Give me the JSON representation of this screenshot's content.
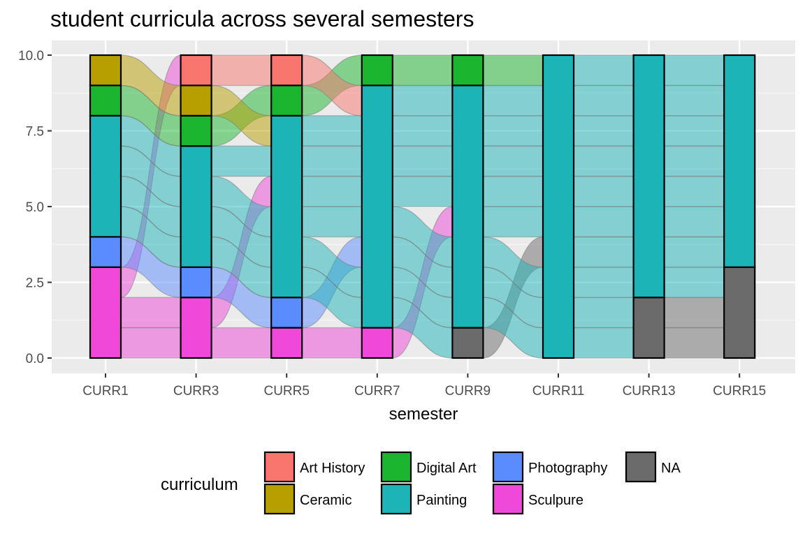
{
  "chart_data": {
    "type": "alluvial",
    "title": "student curricula across several semesters",
    "xlabel": "semester",
    "ylabel": "",
    "ylim": [
      0,
      10
    ],
    "y_ticks": [
      "0.0",
      "2.5",
      "5.0",
      "7.5",
      "10.0"
    ],
    "y_tick_values": [
      0,
      2.5,
      5,
      7.5,
      10
    ],
    "categories": [
      "CURR1",
      "CURR3",
      "CURR5",
      "CURR7",
      "CURR9",
      "CURR11",
      "CURR13",
      "CURR15"
    ],
    "legend": {
      "title": "curriculum",
      "position": "bottom",
      "items": [
        {
          "name": "Art History",
          "color": "#F8766D"
        },
        {
          "name": "Ceramic",
          "color": "#B79F00"
        },
        {
          "name": "Digital Art",
          "color": "#1BB530"
        },
        {
          "name": "Painting",
          "color": "#1DB4B8"
        },
        {
          "name": "Photography",
          "color": "#5B8CFF"
        },
        {
          "name": "Sculpure",
          "color": "#F048D8"
        },
        {
          "name": "NA",
          "color": "#6B6B6B"
        }
      ]
    },
    "stacks": [
      {
        "semester": "CURR1",
        "segments": [
          {
            "curriculum": "Sculpure",
            "value": 3
          },
          {
            "curriculum": "Photography",
            "value": 1
          },
          {
            "curriculum": "Painting",
            "value": 4
          },
          {
            "curriculum": "Digital Art",
            "value": 1
          },
          {
            "curriculum": "Ceramic",
            "value": 1
          }
        ]
      },
      {
        "semester": "CURR3",
        "segments": [
          {
            "curriculum": "Sculpure",
            "value": 2
          },
          {
            "curriculum": "Photography",
            "value": 1
          },
          {
            "curriculum": "Painting",
            "value": 4
          },
          {
            "curriculum": "Digital Art",
            "value": 1
          },
          {
            "curriculum": "Ceramic",
            "value": 1
          },
          {
            "curriculum": "Art History",
            "value": 1
          }
        ]
      },
      {
        "semester": "CURR5",
        "segments": [
          {
            "curriculum": "Sculpure",
            "value": 1
          },
          {
            "curriculum": "Photography",
            "value": 1
          },
          {
            "curriculum": "Painting",
            "value": 6
          },
          {
            "curriculum": "Digital Art",
            "value": 1
          },
          {
            "curriculum": "Art History",
            "value": 1
          }
        ]
      },
      {
        "semester": "CURR7",
        "segments": [
          {
            "curriculum": "Sculpure",
            "value": 1
          },
          {
            "curriculum": "Painting",
            "value": 8
          },
          {
            "curriculum": "Digital Art",
            "value": 1
          }
        ]
      },
      {
        "semester": "CURR9",
        "segments": [
          {
            "curriculum": "NA",
            "value": 1
          },
          {
            "curriculum": "Painting",
            "value": 8
          },
          {
            "curriculum": "Digital Art",
            "value": 1
          }
        ]
      },
      {
        "semester": "CURR11",
        "segments": [
          {
            "curriculum": "Painting",
            "value": 10
          }
        ]
      },
      {
        "semester": "CURR13",
        "segments": [
          {
            "curriculum": "NA",
            "value": 2
          },
          {
            "curriculum": "Painting",
            "value": 8
          }
        ]
      },
      {
        "semester": "CURR15",
        "segments": [
          {
            "curriculum": "NA",
            "value": 3
          },
          {
            "curriculum": "Painting",
            "value": 7
          }
        ]
      }
    ],
    "flows": [
      {
        "from": "CURR1",
        "to": "CURR3",
        "from_range": [
          0,
          1
        ],
        "to_range": [
          0,
          1
        ],
        "color": "#F048D8"
      },
      {
        "from": "CURR1",
        "to": "CURR3",
        "from_range": [
          1,
          2
        ],
        "to_range": [
          1,
          2
        ],
        "color": "#F048D8"
      },
      {
        "from": "CURR1",
        "to": "CURR3",
        "from_range": [
          2,
          3
        ],
        "to_range": [
          9,
          10
        ],
        "color": "#F048D8"
      },
      {
        "from": "CURR1",
        "to": "CURR3",
        "from_range": [
          3,
          4
        ],
        "to_range": [
          2,
          3
        ],
        "color": "#5B8CFF"
      },
      {
        "from": "CURR1",
        "to": "CURR3",
        "from_range": [
          4,
          5
        ],
        "to_range": [
          3,
          4
        ],
        "color": "#1DB4B8"
      },
      {
        "from": "CURR1",
        "to": "CURR3",
        "from_range": [
          5,
          6
        ],
        "to_range": [
          4,
          5
        ],
        "color": "#1DB4B8"
      },
      {
        "from": "CURR1",
        "to": "CURR3",
        "from_range": [
          6,
          7
        ],
        "to_range": [
          5,
          6
        ],
        "color": "#1DB4B8"
      },
      {
        "from": "CURR1",
        "to": "CURR3",
        "from_range": [
          7,
          8
        ],
        "to_range": [
          6,
          7
        ],
        "color": "#1DB4B8"
      },
      {
        "from": "CURR1",
        "to": "CURR3",
        "from_range": [
          8,
          9
        ],
        "to_range": [
          7,
          8
        ],
        "color": "#1BB530"
      },
      {
        "from": "CURR1",
        "to": "CURR3",
        "from_range": [
          9,
          10
        ],
        "to_range": [
          8,
          9
        ],
        "color": "#B79F00"
      },
      {
        "from": "CURR3",
        "to": "CURR5",
        "from_range": [
          0,
          1
        ],
        "to_range": [
          0,
          1
        ],
        "color": "#F048D8"
      },
      {
        "from": "CURR3",
        "to": "CURR5",
        "from_range": [
          1,
          2
        ],
        "to_range": [
          5,
          6
        ],
        "color": "#F048D8"
      },
      {
        "from": "CURR3",
        "to": "CURR5",
        "from_range": [
          2,
          3
        ],
        "to_range": [
          1,
          2
        ],
        "color": "#5B8CFF"
      },
      {
        "from": "CURR3",
        "to": "CURR5",
        "from_range": [
          3,
          4
        ],
        "to_range": [
          2,
          3
        ],
        "color": "#1DB4B8"
      },
      {
        "from": "CURR3",
        "to": "CURR5",
        "from_range": [
          4,
          5
        ],
        "to_range": [
          3,
          4
        ],
        "color": "#1DB4B8"
      },
      {
        "from": "CURR3",
        "to": "CURR5",
        "from_range": [
          5,
          6
        ],
        "to_range": [
          4,
          5
        ],
        "color": "#1DB4B8"
      },
      {
        "from": "CURR3",
        "to": "CURR5",
        "from_range": [
          6,
          7
        ],
        "to_range": [
          6,
          7
        ],
        "color": "#1DB4B8"
      },
      {
        "from": "CURR3",
        "to": "CURR5",
        "from_range": [
          7,
          8
        ],
        "to_range": [
          8,
          9
        ],
        "color": "#1BB530"
      },
      {
        "from": "CURR3",
        "to": "CURR5",
        "from_range": [
          8,
          9
        ],
        "to_range": [
          7,
          8
        ],
        "color": "#B79F00"
      },
      {
        "from": "CURR3",
        "to": "CURR5",
        "from_range": [
          9,
          10
        ],
        "to_range": [
          9,
          10
        ],
        "color": "#F8766D"
      },
      {
        "from": "CURR5",
        "to": "CURR7",
        "from_range": [
          0,
          1
        ],
        "to_range": [
          0,
          1
        ],
        "color": "#F048D8"
      },
      {
        "from": "CURR5",
        "to": "CURR7",
        "from_range": [
          1,
          2
        ],
        "to_range": [
          3,
          4
        ],
        "color": "#5B8CFF"
      },
      {
        "from": "CURR5",
        "to": "CURR7",
        "from_range": [
          2,
          3
        ],
        "to_range": [
          1,
          2
        ],
        "color": "#1DB4B8"
      },
      {
        "from": "CURR5",
        "to": "CURR7",
        "from_range": [
          3,
          4
        ],
        "to_range": [
          2,
          3
        ],
        "color": "#1DB4B8"
      },
      {
        "from": "CURR5",
        "to": "CURR7",
        "from_range": [
          4,
          5
        ],
        "to_range": [
          4,
          5
        ],
        "color": "#1DB4B8"
      },
      {
        "from": "CURR5",
        "to": "CURR7",
        "from_range": [
          5,
          6
        ],
        "to_range": [
          5,
          6
        ],
        "color": "#1DB4B8"
      },
      {
        "from": "CURR5",
        "to": "CURR7",
        "from_range": [
          6,
          7
        ],
        "to_range": [
          6,
          7
        ],
        "color": "#1DB4B8"
      },
      {
        "from": "CURR5",
        "to": "CURR7",
        "from_range": [
          7,
          8
        ],
        "to_range": [
          7,
          8
        ],
        "color": "#1DB4B8"
      },
      {
        "from": "CURR5",
        "to": "CURR7",
        "from_range": [
          8,
          9
        ],
        "to_range": [
          9,
          10
        ],
        "color": "#1BB530"
      },
      {
        "from": "CURR5",
        "to": "CURR7",
        "from_range": [
          9,
          10
        ],
        "to_range": [
          8,
          9
        ],
        "color": "#F8766D"
      },
      {
        "from": "CURR7",
        "to": "CURR9",
        "from_range": [
          0,
          1
        ],
        "to_range": [
          4,
          5
        ],
        "color": "#F048D8"
      },
      {
        "from": "CURR7",
        "to": "CURR9",
        "from_range": [
          1,
          2
        ],
        "to_range": [
          0,
          1
        ],
        "color": "#1DB4B8"
      },
      {
        "from": "CURR7",
        "to": "CURR9",
        "from_range": [
          2,
          3
        ],
        "to_range": [
          1,
          2
        ],
        "color": "#1DB4B8"
      },
      {
        "from": "CURR7",
        "to": "CURR9",
        "from_range": [
          3,
          4
        ],
        "to_range": [
          2,
          3
        ],
        "color": "#1DB4B8"
      },
      {
        "from": "CURR7",
        "to": "CURR9",
        "from_range": [
          4,
          5
        ],
        "to_range": [
          3,
          4
        ],
        "color": "#1DB4B8"
      },
      {
        "from": "CURR7",
        "to": "CURR9",
        "from_range": [
          5,
          6
        ],
        "to_range": [
          5,
          6
        ],
        "color": "#1DB4B8"
      },
      {
        "from": "CURR7",
        "to": "CURR9",
        "from_range": [
          6,
          7
        ],
        "to_range": [
          6,
          7
        ],
        "color": "#1DB4B8"
      },
      {
        "from": "CURR7",
        "to": "CURR9",
        "from_range": [
          7,
          8
        ],
        "to_range": [
          7,
          8
        ],
        "color": "#1DB4B8"
      },
      {
        "from": "CURR7",
        "to": "CURR9",
        "from_range": [
          8,
          9
        ],
        "to_range": [
          8,
          9
        ],
        "color": "#1DB4B8"
      },
      {
        "from": "CURR7",
        "to": "CURR9",
        "from_range": [
          9,
          10
        ],
        "to_range": [
          9,
          10
        ],
        "color": "#1BB530"
      },
      {
        "from": "CURR9",
        "to": "CURR11",
        "from_range": [
          0,
          1
        ],
        "to_range": [
          3,
          4
        ],
        "color": "#6B6B6B"
      },
      {
        "from": "CURR9",
        "to": "CURR11",
        "from_range": [
          1,
          2
        ],
        "to_range": [
          0,
          1
        ],
        "color": "#1DB4B8"
      },
      {
        "from": "CURR9",
        "to": "CURR11",
        "from_range": [
          2,
          3
        ],
        "to_range": [
          1,
          2
        ],
        "color": "#1DB4B8"
      },
      {
        "from": "CURR9",
        "to": "CURR11",
        "from_range": [
          3,
          4
        ],
        "to_range": [
          2,
          3
        ],
        "color": "#1DB4B8"
      },
      {
        "from": "CURR9",
        "to": "CURR11",
        "from_range": [
          4,
          5
        ],
        "to_range": [
          4,
          5
        ],
        "color": "#1DB4B8"
      },
      {
        "from": "CURR9",
        "to": "CURR11",
        "from_range": [
          5,
          6
        ],
        "to_range": [
          5,
          6
        ],
        "color": "#1DB4B8"
      },
      {
        "from": "CURR9",
        "to": "CURR11",
        "from_range": [
          6,
          7
        ],
        "to_range": [
          6,
          7
        ],
        "color": "#1DB4B8"
      },
      {
        "from": "CURR9",
        "to": "CURR11",
        "from_range": [
          7,
          8
        ],
        "to_range": [
          7,
          8
        ],
        "color": "#1DB4B8"
      },
      {
        "from": "CURR9",
        "to": "CURR11",
        "from_range": [
          8,
          9
        ],
        "to_range": [
          8,
          9
        ],
        "color": "#1DB4B8"
      },
      {
        "from": "CURR9",
        "to": "CURR11",
        "from_range": [
          9,
          10
        ],
        "to_range": [
          9,
          10
        ],
        "color": "#1BB530"
      },
      {
        "from": "CURR11",
        "to": "CURR13",
        "from_range": [
          0,
          1
        ],
        "to_range": [
          0,
          1
        ],
        "color": "#1DB4B8"
      },
      {
        "from": "CURR11",
        "to": "CURR13",
        "from_range": [
          1,
          2
        ],
        "to_range": [
          1,
          2
        ],
        "color": "#1DB4B8"
      },
      {
        "from": "CURR11",
        "to": "CURR13",
        "from_range": [
          2,
          3
        ],
        "to_range": [
          2,
          3
        ],
        "color": "#1DB4B8"
      },
      {
        "from": "CURR11",
        "to": "CURR13",
        "from_range": [
          3,
          4
        ],
        "to_range": [
          3,
          4
        ],
        "color": "#1DB4B8"
      },
      {
        "from": "CURR11",
        "to": "CURR13",
        "from_range": [
          4,
          5
        ],
        "to_range": [
          4,
          5
        ],
        "color": "#1DB4B8"
      },
      {
        "from": "CURR11",
        "to": "CURR13",
        "from_range": [
          5,
          6
        ],
        "to_range": [
          5,
          6
        ],
        "color": "#1DB4B8"
      },
      {
        "from": "CURR11",
        "to": "CURR13",
        "from_range": [
          6,
          7
        ],
        "to_range": [
          6,
          7
        ],
        "color": "#1DB4B8"
      },
      {
        "from": "CURR11",
        "to": "CURR13",
        "from_range": [
          7,
          8
        ],
        "to_range": [
          7,
          8
        ],
        "color": "#1DB4B8"
      },
      {
        "from": "CURR11",
        "to": "CURR13",
        "from_range": [
          8,
          9
        ],
        "to_range": [
          8,
          9
        ],
        "color": "#1DB4B8"
      },
      {
        "from": "CURR11",
        "to": "CURR13",
        "from_range": [
          9,
          10
        ],
        "to_range": [
          9,
          10
        ],
        "color": "#1DB4B8"
      },
      {
        "from": "CURR13",
        "to": "CURR15",
        "from_range": [
          0,
          1
        ],
        "to_range": [
          0,
          1
        ],
        "color": "#6B6B6B"
      },
      {
        "from": "CURR13",
        "to": "CURR15",
        "from_range": [
          1,
          2
        ],
        "to_range": [
          1,
          2
        ],
        "color": "#6B6B6B"
      },
      {
        "from": "CURR13",
        "to": "CURR15",
        "from_range": [
          2,
          3
        ],
        "to_range": [
          2,
          3
        ],
        "color": "#1DB4B8"
      },
      {
        "from": "CURR13",
        "to": "CURR15",
        "from_range": [
          3,
          4
        ],
        "to_range": [
          3,
          4
        ],
        "color": "#1DB4B8"
      },
      {
        "from": "CURR13",
        "to": "CURR15",
        "from_range": [
          4,
          5
        ],
        "to_range": [
          4,
          5
        ],
        "color": "#1DB4B8"
      },
      {
        "from": "CURR13",
        "to": "CURR15",
        "from_range": [
          5,
          6
        ],
        "to_range": [
          5,
          6
        ],
        "color": "#1DB4B8"
      },
      {
        "from": "CURR13",
        "to": "CURR15",
        "from_range": [
          6,
          7
        ],
        "to_range": [
          6,
          7
        ],
        "color": "#1DB4B8"
      },
      {
        "from": "CURR13",
        "to": "CURR15",
        "from_range": [
          7,
          8
        ],
        "to_range": [
          7,
          8
        ],
        "color": "#1DB4B8"
      },
      {
        "from": "CURR13",
        "to": "CURR15",
        "from_range": [
          8,
          9
        ],
        "to_range": [
          8,
          9
        ],
        "color": "#1DB4B8"
      },
      {
        "from": "CURR13",
        "to": "CURR15",
        "from_range": [
          9,
          10
        ],
        "to_range": [
          9,
          10
        ],
        "color": "#1DB4B8"
      }
    ]
  }
}
